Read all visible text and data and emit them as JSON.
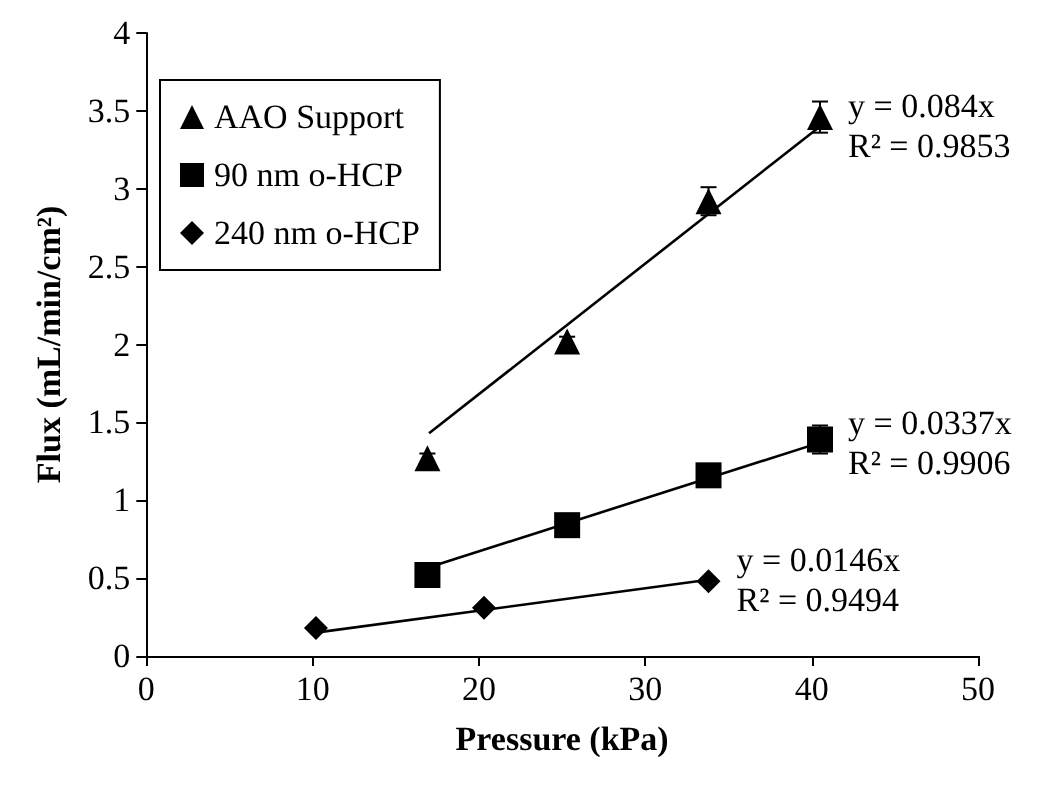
{
  "chart_data": {
    "type": "scatter",
    "xlabel": "Pressure (kPa)",
    "ylabel": "Flux (mL/min/cm²)",
    "xlim": [
      0,
      50
    ],
    "xticks": [
      0,
      10,
      20,
      30,
      40,
      50
    ],
    "ylim": [
      0,
      4
    ],
    "yticks": [
      0,
      0.5,
      1,
      1.5,
      2,
      2.5,
      3,
      3.5,
      4
    ],
    "grid": false,
    "legend": "top left",
    "series": [
      {
        "name": "AAO Support",
        "color": "#000000",
        "marker": "triangle",
        "x": [
          16.9,
          25.3,
          33.8,
          40.5
        ],
        "values": [
          1.27,
          2.02,
          2.92,
          3.46
        ],
        "errors": [
          0.03,
          0.03,
          0.09,
          0.1
        ]
      },
      {
        "name": "90 nm o-HCP",
        "color": "#000000",
        "marker": "square",
        "x": [
          16.9,
          25.3,
          33.8,
          40.5
        ],
        "values": [
          0.52,
          0.84,
          1.16,
          1.39
        ],
        "errors": [
          null,
          null,
          0.03,
          0.09
        ]
      },
      {
        "name": "240 nm o-HCP",
        "color": "#000000",
        "marker": "diamond",
        "x": [
          10.2,
          20.3,
          33.8
        ],
        "values": [
          0.18,
          0.31,
          0.48
        ]
      },
      {
        "type": "line",
        "color": "#000000",
        "marker": "none",
        "line_style": "solid",
        "x": [
          17,
          40.5
        ],
        "values": [
          1.43,
          3.4
        ]
      },
      {
        "type": "line",
        "color": "#000000",
        "marker": "none",
        "line_style": "solid",
        "x": [
          17,
          40.5
        ],
        "values": [
          0.57,
          1.37
        ]
      },
      {
        "type": "line",
        "color": "#000000",
        "marker": "none",
        "line_style": "solid",
        "x": [
          10.2,
          33.8
        ],
        "values": [
          0.15,
          0.49
        ]
      }
    ],
    "annotations": [
      "y = 0.084x\nR² = 0.9853",
      "y = 0.0337x\nR² = 0.9906",
      "y = 0.0146x\nR² = 0.9494"
    ]
  }
}
